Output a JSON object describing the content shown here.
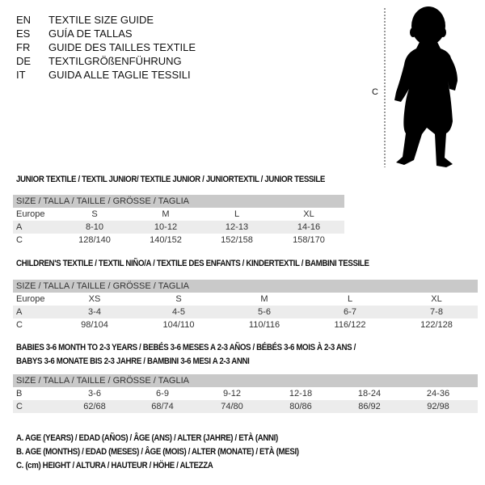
{
  "languages": [
    {
      "code": "EN",
      "title": "TEXTILE SIZE GUIDE"
    },
    {
      "code": "ES",
      "title": "GUÍA DE TALLAS"
    },
    {
      "code": "FR",
      "title": "GUIDE DES TAILLES TEXTILE"
    },
    {
      "code": "DE",
      "title": "TEXTILGRÖßENFÜHRUNG"
    },
    {
      "code": "IT",
      "title": "GUIDA ALLE TAGLIE TESSILI"
    }
  ],
  "figure": {
    "measure_label": "C",
    "icon": "child-silhouette"
  },
  "tables": [
    {
      "title": "JUNIOR TEXTILE / TEXTIL JUNIOR/ TEXTILE JUNIOR / JUNIORTEXTIL / JUNIOR TESSILE",
      "header": "SIZE / TALLA / TAILLE / GRÖSSE / TAGLIA",
      "rows": [
        {
          "label": "Europe",
          "values": [
            "S",
            "M",
            "L",
            "XL"
          ]
        },
        {
          "label": "A",
          "values": [
            "8-10",
            "10-12",
            "12-13",
            "14-16"
          ]
        },
        {
          "label": "C",
          "values": [
            "128/140",
            "140/152",
            "152/158",
            "158/170"
          ]
        }
      ]
    },
    {
      "title": "CHILDREN'S TEXTILE / TEXTIL NIÑO/A / TEXTILE DES ENFANTS / KINDERTEXTIL / BAMBINI TESSILE",
      "header": "SIZE / TALLA / TAILLE / GRÖSSE / TAGLIA",
      "rows": [
        {
          "label": "Europe",
          "values": [
            "XS",
            "S",
            "M",
            "L",
            "XL"
          ]
        },
        {
          "label": "A",
          "values": [
            "3-4",
            "4-5",
            "5-6",
            "6-7",
            "7-8"
          ]
        },
        {
          "label": "C",
          "values": [
            "98/104",
            "104/110",
            "110/116",
            "116/122",
            "122/128"
          ]
        }
      ]
    },
    {
      "title_line1": "BABIES 3-6 MONTH TO 2-3 YEARS / BEBÉS 3-6 MESES A 2-3 AÑOS / BÉBÉS 3-6 MOIS À 2-3 ANS /",
      "title_line2": "BABYS 3-6 MONATE BIS 2-3 JAHRE / BAMBINI 3-6 MESI A 2-3 ANNI",
      "header": "SIZE / TALLA / TAILLE / GRÖSSE / TAGLIA",
      "rows": [
        {
          "label": "B",
          "values": [
            "3-6",
            "6-9",
            "9-12",
            "12-18",
            "18-24",
            "24-36"
          ]
        },
        {
          "label": "C",
          "values": [
            "62/68",
            "68/74",
            "74/80",
            "80/86",
            "86/92",
            "92/98"
          ]
        }
      ]
    }
  ],
  "legend": [
    "A. AGE (YEARS) / EDAD (AÑOS) / ÂGE (ANS) / ALTER (JAHRE) / ETÀ (ANNI)",
    "B. AGE (MONTHS) / EDAD (MESES) / ÂGE (MOIS) / ALTER (MONATE) / ETÀ (MESI)",
    "C. (cm) HEIGHT / ALTURA / HAUTEUR / HÖHE / ALTEZZA"
  ],
  "colors": {
    "header_bg": "#c9c9c9",
    "stripe_bg": "#ececec"
  }
}
